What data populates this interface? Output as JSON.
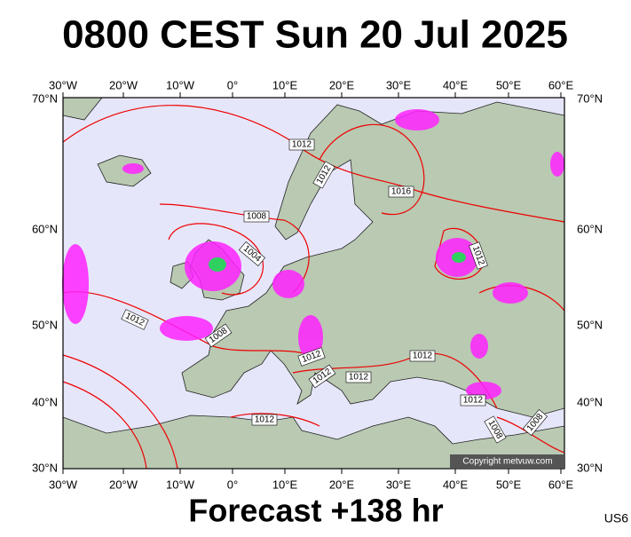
{
  "header": {
    "title": "0800 CEST Sun 20 Jul 2025"
  },
  "map": {
    "lon_labels": [
      "30°W",
      "20°W",
      "10°W",
      "0°",
      "10°E",
      "20°E",
      "30°E",
      "40°E",
      "50°E",
      "60°E"
    ],
    "lat_labels": [
      "70°N",
      "60°N",
      "50°N",
      "40°N",
      "30°N"
    ],
    "isobar_labels": [
      "1012",
      "1012",
      "1016",
      "1008",
      "1004",
      "1012",
      "1012",
      "1008",
      "1012",
      "1012",
      "1012",
      "1012",
      "1012",
      "1008",
      "1008",
      "1012"
    ],
    "copyright": "Copyright metvuw.com"
  },
  "footer": {
    "forecast": "Forecast +138 hr",
    "code": "US6"
  }
}
